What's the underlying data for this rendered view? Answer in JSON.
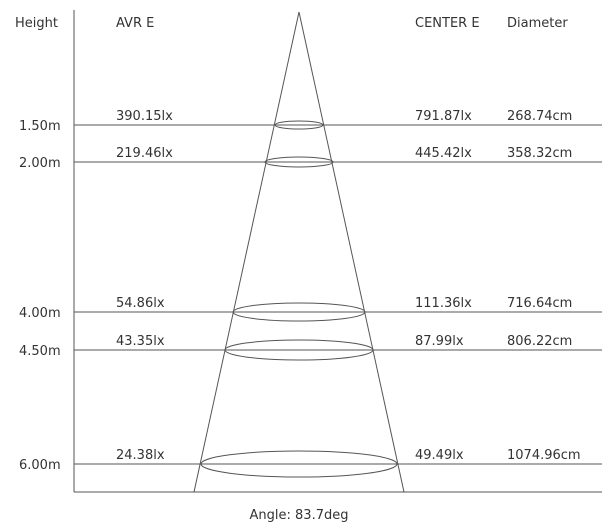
{
  "headers": {
    "height": "Height",
    "avr_e": "AVR E",
    "center_e": "CENTER E",
    "diameter": "Diameter"
  },
  "rows": [
    {
      "height": "1.50m",
      "avr_e": "390.15lx",
      "center_e": "791.87lx",
      "diameter": "268.74cm"
    },
    {
      "height": "2.00m",
      "avr_e": "219.46lx",
      "center_e": "445.42lx",
      "diameter": "358.32cm"
    },
    {
      "height": "4.00m",
      "avr_e": "54.86lx",
      "center_e": "111.36lx",
      "diameter": "716.64cm"
    },
    {
      "height": "4.50m",
      "avr_e": "43.35lx",
      "center_e": "87.99lx",
      "diameter": "806.22cm"
    },
    {
      "height": "6.00m",
      "avr_e": "24.38lx",
      "center_e": "49.49lx",
      "diameter": "1074.96cm"
    }
  ],
  "angle_label": "Angle: 83.7deg"
}
